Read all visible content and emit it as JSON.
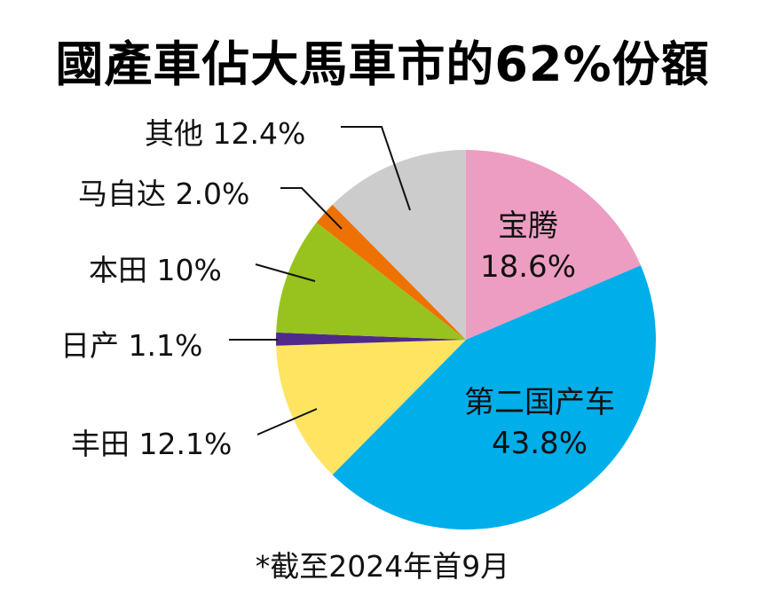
{
  "chart_data": {
    "type": "pie",
    "title": "國產車佔大馬車市的62%份額",
    "footnote": "*截至2024年首9月",
    "slices": [
      {
        "label": "宝腾",
        "value": 18.6,
        "display": "18.6%",
        "color": "#EE9DC2"
      },
      {
        "label": "第二国产车",
        "value": 43.8,
        "display": "43.8%",
        "color": "#00AEEA"
      },
      {
        "label": "丰田",
        "value": 12.1,
        "display": "12.1%",
        "color": "#FFE462"
      },
      {
        "label": "日产",
        "value": 1.1,
        "display": "1.1%",
        "color": "#4F2A8A"
      },
      {
        "label": "本田",
        "value": 10,
        "display": "10%",
        "color": "#98C31F"
      },
      {
        "label": "马自达",
        "value": 2.0,
        "display": "2.0%",
        "color": "#EE7203"
      },
      {
        "label": "其他",
        "value": 12.4,
        "display": "12.4%",
        "color": "#CCCCCC"
      }
    ],
    "start_angle": "top, clockwise"
  },
  "labels": {
    "proton": {
      "name": "宝腾",
      "pct": "18.6%"
    },
    "perodua": {
      "name": "第二国产车",
      "pct": "43.8%"
    },
    "toyota": "丰田 12.1%",
    "nissan": "日产 1.1%",
    "honda": "本田 10%",
    "mazda": "马自达 2.0%",
    "others": "其他 12.4%"
  }
}
